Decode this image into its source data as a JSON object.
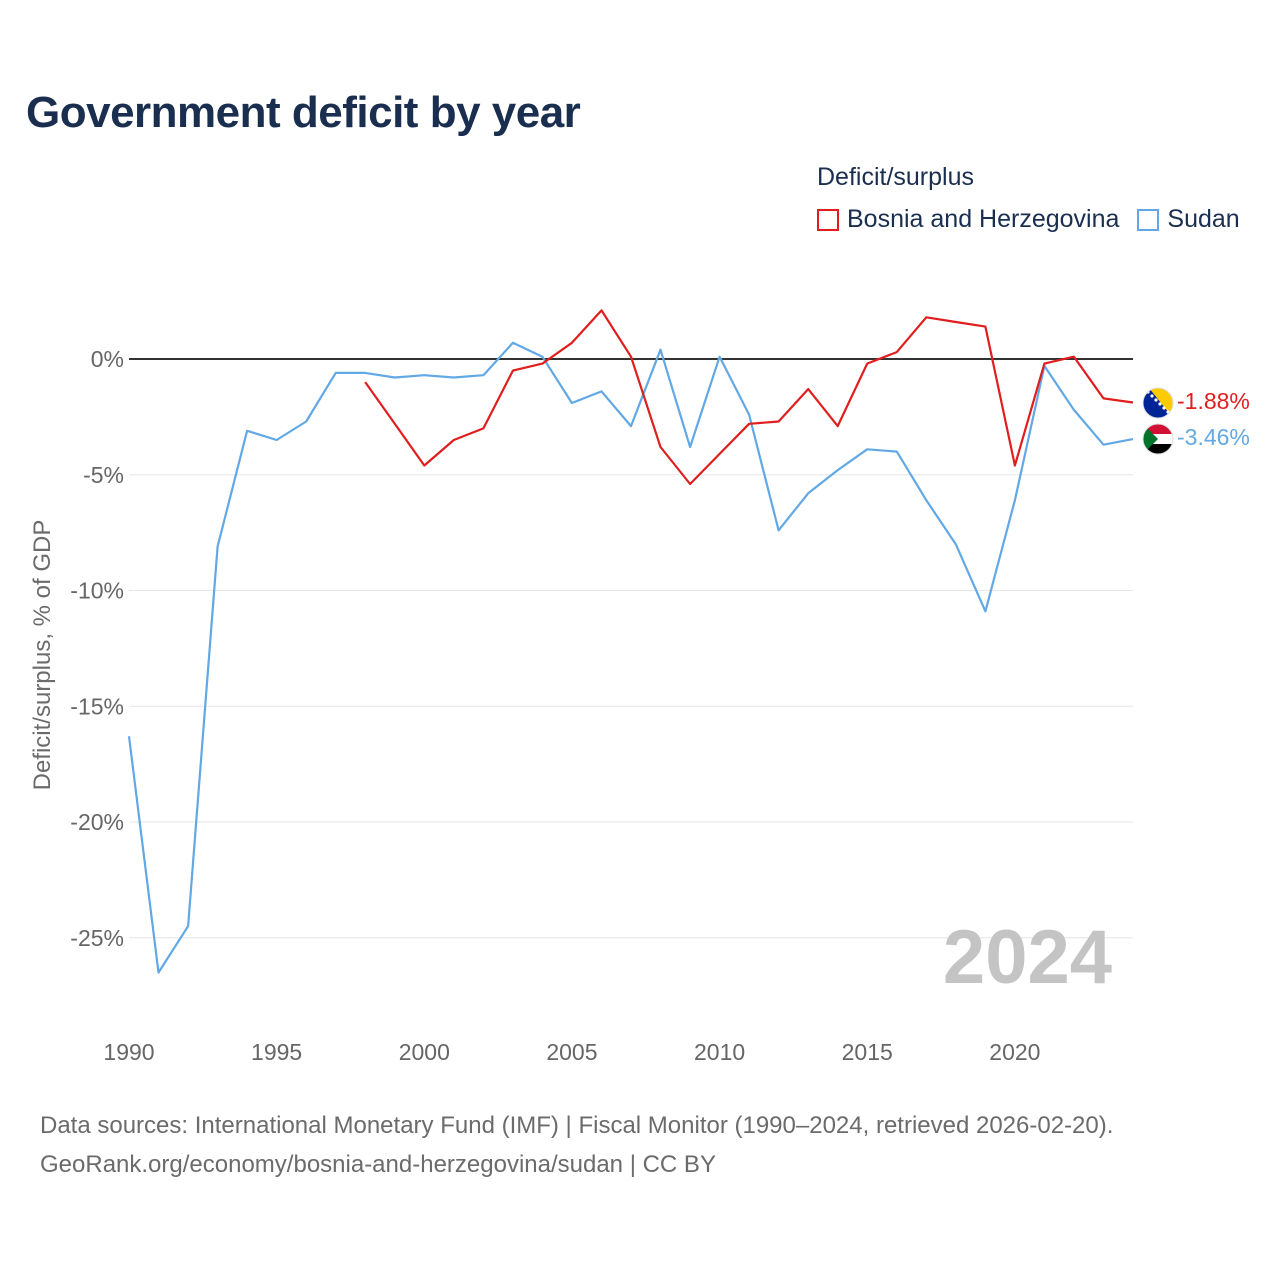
{
  "title": "Government deficit by year",
  "legend": {
    "title": "Deficit/surplus",
    "items": [
      {
        "name": "Bosnia and Herzegovina",
        "color": "#e01e1e"
      },
      {
        "name": "Sudan",
        "color": "#62a8e5"
      }
    ]
  },
  "source": {
    "line1": "Data sources: International Monetary Fund (IMF) | Fiscal Monitor (1990–2024, retrieved 2026-02-20).",
    "line2": "GeoRank.org/economy/bosnia-and-herzegovina/sudan | CC BY"
  },
  "chart_data": {
    "type": "line",
    "title": "Government deficit by year",
    "ylabel": "Deficit/surplus, % of GDP",
    "xlabel": "",
    "xlim": [
      1990,
      2024
    ],
    "ylim": [
      -27,
      2.5
    ],
    "x_ticks": [
      1990,
      1995,
      2000,
      2005,
      2010,
      2015,
      2020
    ],
    "y_ticks": [
      0,
      -5,
      -10,
      -15,
      -20,
      -25
    ],
    "y_tick_labels": [
      "0%",
      "-5%",
      "-10%",
      "-15%",
      "-20%",
      "-25%"
    ],
    "grid": true,
    "zero_line": true,
    "year_label": "2024",
    "series": [
      {
        "name": "Bosnia and Herzegovina",
        "color": "#e01e1e",
        "flag": "bosnia-and-herzegovina-flag-icon",
        "end_label": "-1.88%",
        "x": [
          1998,
          1999,
          2000,
          2001,
          2002,
          2003,
          2004,
          2005,
          2006,
          2007,
          2008,
          2009,
          2010,
          2011,
          2012,
          2013,
          2014,
          2015,
          2016,
          2017,
          2018,
          2019,
          2020,
          2021,
          2022,
          2023,
          2024
        ],
        "values": [
          -1.0,
          -2.8,
          -4.6,
          -3.5,
          -3.0,
          -0.5,
          -0.2,
          0.7,
          2.1,
          0.1,
          -3.8,
          -5.4,
          -4.1,
          -2.8,
          -2.7,
          -1.3,
          -2.9,
          -0.2,
          0.3,
          1.8,
          1.6,
          1.4,
          -4.6,
          -0.2,
          0.1,
          -1.7,
          -1.88
        ]
      },
      {
        "name": "Sudan",
        "color": "#62a8e5",
        "flag": "sudan-flag-icon",
        "end_label": "-3.46%",
        "x": [
          1990,
          1991,
          1992,
          1993,
          1994,
          1995,
          1996,
          1997,
          1998,
          1999,
          2000,
          2001,
          2002,
          2003,
          2004,
          2005,
          2006,
          2007,
          2008,
          2009,
          2010,
          2011,
          2012,
          2013,
          2014,
          2015,
          2016,
          2017,
          2018,
          2019,
          2020,
          2021,
          2022,
          2023,
          2024
        ],
        "values": [
          -16.3,
          -26.5,
          -24.5,
          -8.1,
          -3.1,
          -3.5,
          -2.7,
          -0.6,
          -0.6,
          -0.8,
          -0.7,
          -0.8,
          -0.7,
          0.7,
          0.1,
          -1.9,
          -1.4,
          -2.9,
          0.4,
          -3.8,
          0.1,
          -2.4,
          -7.4,
          -5.8,
          -4.8,
          -3.9,
          -4.0,
          -6.1,
          -8.0,
          -10.9,
          -6.1,
          -0.3,
          -2.2,
          -3.7,
          -3.46
        ]
      }
    ]
  }
}
